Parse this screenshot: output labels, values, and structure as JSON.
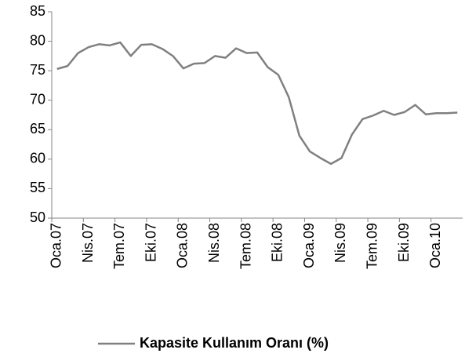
{
  "chart_data": {
    "type": "line",
    "categories": [
      "Oca.07",
      null,
      null,
      "Nis.07",
      null,
      null,
      "Tem.07",
      null,
      null,
      "Eki.07",
      null,
      null,
      "Oca.08",
      null,
      null,
      "Nis.08",
      null,
      null,
      "Tem.08",
      null,
      null,
      "Eki.08",
      null,
      null,
      "Oca.09",
      null,
      null,
      "Nis.09",
      null,
      null,
      "Tem.09",
      null,
      null,
      "Eki.09",
      null,
      null,
      "Oca.10",
      null,
      null
    ],
    "series": [
      {
        "name": "Kapasite Kullanım Oranı (%)",
        "color": "#808080",
        "values": [
          75.3,
          75.8,
          78.0,
          79.0,
          79.5,
          79.3,
          79.8,
          77.5,
          79.4,
          79.5,
          78.7,
          77.5,
          75.4,
          76.2,
          76.3,
          77.5,
          77.2,
          78.8,
          78.0,
          78.1,
          75.6,
          74.3,
          70.5,
          64.0,
          61.3,
          60.2,
          59.2,
          60.2,
          64.2,
          66.8,
          67.4,
          68.2,
          67.5,
          68.0,
          69.2,
          67.6,
          67.8,
          67.8,
          67.9
        ]
      }
    ],
    "ylim": [
      50,
      85
    ],
    "yticks": [
      50,
      55,
      60,
      65,
      70,
      75,
      80,
      85
    ],
    "grid": false,
    "legend": "bottom"
  }
}
